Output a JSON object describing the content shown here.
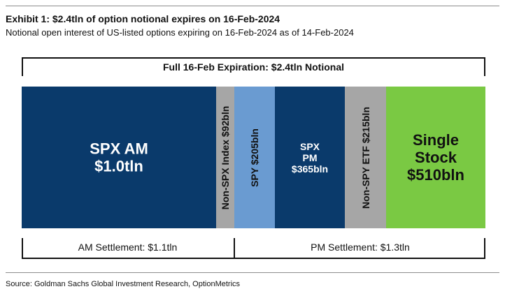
{
  "header": {
    "title": "Exhibit 1: $2.4tln of option notional expires on 16-Feb-2024",
    "subtitle": "Notional open interest of US-listed options expiring on 16-Feb-2024 as of 14-Feb-2024"
  },
  "chart_data": {
    "type": "bar",
    "orientation": "horizontal-stacked-mekko",
    "total_label": "Full 16-Feb Expiration: $2.4tln Notional",
    "segments": [
      {
        "label_lines": [
          "SPX AM",
          "$1.0tln"
        ],
        "value": 1000,
        "unit": "bln",
        "color": "#0a3a6b",
        "settlement": "AM"
      },
      {
        "label_lines": [
          "Non-SPX Index $92bln"
        ],
        "value": 92,
        "unit": "bln",
        "color": "#a6a6a6",
        "settlement": "AM"
      },
      {
        "label_lines": [
          "SPY $205bln"
        ],
        "value": 205,
        "unit": "bln",
        "color": "#6a9bd1",
        "settlement": "PM"
      },
      {
        "label_lines": [
          "SPX",
          "PM",
          "$365bln"
        ],
        "value": 365,
        "unit": "bln",
        "color": "#0a3a6b",
        "settlement": "PM"
      },
      {
        "label_lines": [
          "Non-SPY ETF $215bln"
        ],
        "value": 215,
        "unit": "bln",
        "color": "#a6a6a6",
        "settlement": "PM"
      },
      {
        "label_lines": [
          "Single",
          "Stock",
          "$510bln"
        ],
        "value": 510,
        "unit": "bln",
        "color": "#7ac943",
        "settlement": "PM"
      }
    ],
    "groups": [
      {
        "label": "AM Settlement: $1.1tln"
      },
      {
        "label": "PM Settlement: $1.3tln"
      }
    ]
  },
  "footer": {
    "source": "Source: Goldman Sachs Global Investment Research, OptionMetrics"
  }
}
